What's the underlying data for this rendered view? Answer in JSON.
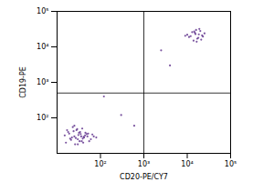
{
  "chart_data": {
    "type": "scatter",
    "x_label": "CD20-PE/CY7",
    "y_label": "CD19-PE",
    "log": true,
    "color": "#5a2a88",
    "xlim": [
      10,
      100000
    ],
    "ylim": [
      10,
      100000
    ],
    "xticks": [
      {
        "value": 100,
        "label": "10²"
      },
      {
        "value": 1000,
        "label": "10³"
      },
      {
        "value": 10000,
        "label": "10⁴"
      },
      {
        "value": 100000,
        "label": "10⁵"
      }
    ],
    "yticks": [
      {
        "value": 100,
        "label": "10²"
      },
      {
        "value": 1000,
        "label": "10³"
      },
      {
        "value": 10000,
        "label": "10⁴"
      },
      {
        "value": 100000,
        "label": "10⁵"
      }
    ],
    "quadrant": {
      "x": 1000,
      "y": 500
    },
    "x": [
      25,
      30,
      18,
      40,
      35,
      22,
      50,
      28,
      33,
      45,
      15,
      20,
      60,
      38,
      26,
      31,
      42,
      19,
      24,
      55,
      36,
      29,
      48,
      21,
      34,
      27,
      70,
      16,
      39,
      23,
      44,
      32,
      80,
      17,
      52,
      37,
      25,
      30,
      65,
      41,
      12000,
      15000,
      18000,
      10000,
      20000,
      14000,
      16000,
      22000,
      13000,
      17000,
      25000,
      11000,
      19000,
      15500,
      21000,
      9000,
      14500,
      18500,
      16500,
      23000,
      300,
      120,
      2500,
      600,
      4000
    ],
    "y": [
      30,
      25,
      40,
      20,
      35,
      28,
      30,
      45,
      22,
      38,
      32,
      26,
      25,
      50,
      18,
      33,
      28,
      36,
      42,
      22,
      30,
      48,
      35,
      24,
      40,
      27,
      30,
      20,
      26,
      55,
      32,
      38,
      28,
      45,
      36,
      22,
      60,
      18,
      34,
      29,
      20000,
      25000,
      18000,
      22000,
      28000,
      15000,
      30000,
      21000,
      26000,
      17000,
      24000,
      19000,
      32000,
      23000,
      16000,
      20500,
      27000,
      22500,
      14000,
      19500,
      120,
      400,
      8000,
      60,
      3000
    ]
  }
}
